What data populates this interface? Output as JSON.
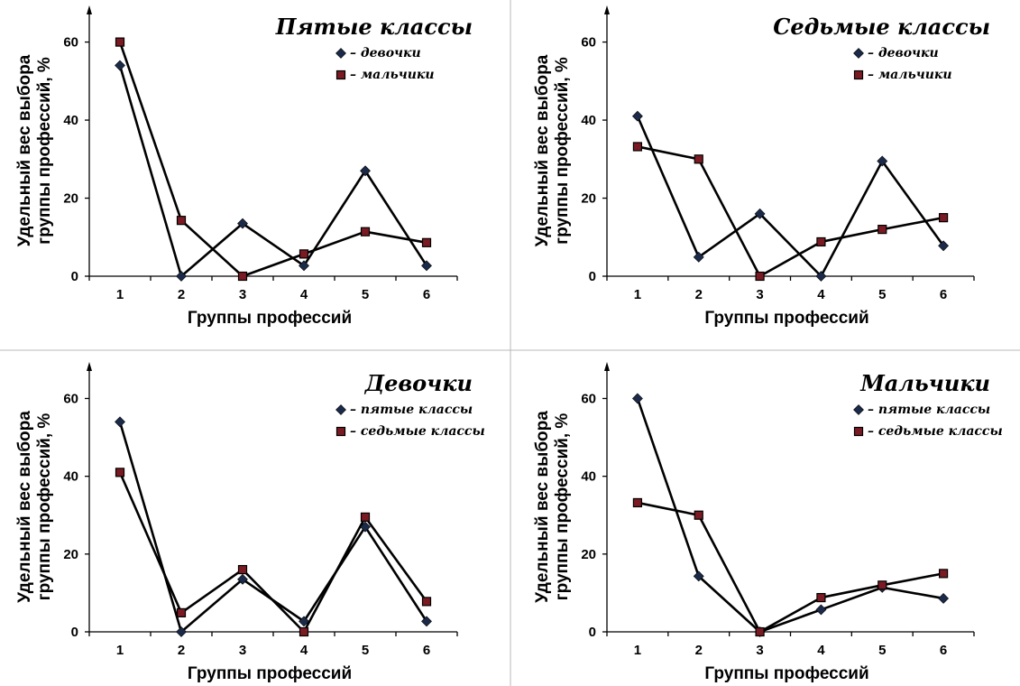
{
  "chart_data": [
    {
      "type": "line",
      "title": "Пятые классы",
      "xlabel": "Группы профессий",
      "ylabel": "Удельный вес выбора группы профессий, %",
      "categories": [
        "1",
        "2",
        "3",
        "4",
        "5",
        "6"
      ],
      "yticks": [
        "0",
        "20",
        "40",
        "60"
      ],
      "ylim": [
        0,
        68
      ],
      "legend_position": "top-right",
      "series": [
        {
          "name": "– девочки",
          "marker": "diamond",
          "values": [
            54,
            0,
            13.5,
            2.7,
            27,
            2.7
          ]
        },
        {
          "name": "– мальчики",
          "marker": "square",
          "values": [
            60,
            14.3,
            0,
            5.7,
            11.4,
            8.6
          ]
        }
      ]
    },
    {
      "type": "line",
      "title": "Седьмые классы",
      "xlabel": "Группы профессий",
      "ylabel": "Удельный вес выбора группы профессий, %",
      "categories": [
        "1",
        "2",
        "3",
        "4",
        "5",
        "6"
      ],
      "yticks": [
        "0",
        "20",
        "40",
        "60"
      ],
      "ylim": [
        0,
        68
      ],
      "legend_position": "top-right",
      "series": [
        {
          "name": "– девочки",
          "marker": "diamond",
          "values": [
            41,
            4.9,
            16,
            0,
            29.5,
            7.8
          ]
        },
        {
          "name": "– мальчики",
          "marker": "square",
          "values": [
            33.2,
            30,
            0,
            8.8,
            12,
            15
          ]
        }
      ]
    },
    {
      "type": "line",
      "title": "Девочки",
      "xlabel": "Группы профессий",
      "ylabel": "Удельный вес выбора группы профессий, %",
      "categories": [
        "1",
        "2",
        "3",
        "4",
        "5",
        "6"
      ],
      "yticks": [
        "0",
        "20",
        "40",
        "60"
      ],
      "ylim": [
        0,
        68
      ],
      "legend_position": "top-right",
      "series": [
        {
          "name": "– пятые классы",
          "marker": "diamond",
          "values": [
            54,
            0,
            13.5,
            2.7,
            27,
            2.7
          ]
        },
        {
          "name": "– седьмые классы",
          "marker": "square",
          "values": [
            41,
            4.9,
            16,
            0,
            29.5,
            7.8
          ]
        }
      ]
    },
    {
      "type": "line",
      "title": "Мальчики",
      "xlabel": "Группы профессий",
      "ylabel": "Удельный вес выбора группы профессий, %",
      "categories": [
        "1",
        "2",
        "3",
        "4",
        "5",
        "6"
      ],
      "yticks": [
        "0",
        "20",
        "40",
        "60"
      ],
      "ylim": [
        0,
        68
      ],
      "legend_position": "top-right",
      "series": [
        {
          "name": "– пятые классы",
          "marker": "diamond",
          "values": [
            60,
            14.3,
            0,
            5.7,
            11.4,
            8.6
          ]
        },
        {
          "name": "– седьмые классы",
          "marker": "square",
          "values": [
            33.2,
            30,
            0,
            8.8,
            12,
            15
          ]
        }
      ]
    }
  ],
  "colors": {
    "line": "#000000",
    "diamond_marker": "#1c2a4a",
    "square_marker_fill": "#7a1a22",
    "square_marker_edge": "#000000",
    "divider": "#b9b9b9"
  }
}
